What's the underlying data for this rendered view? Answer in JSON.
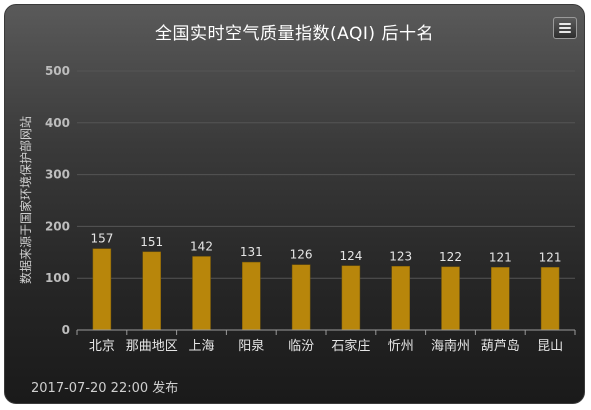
{
  "chart_data": {
    "type": "bar",
    "title": "全国实时空气质量指数(AQI) 后十名",
    "ylabel": "数据来源于国家环境保护部网站",
    "xlabel": "",
    "categories": [
      "北京",
      "那曲地区",
      "上海",
      "阳泉",
      "临汾",
      "石家庄",
      "忻州",
      "海南州",
      "葫芦岛",
      "昆山"
    ],
    "values": [
      157,
      151,
      142,
      131,
      126,
      124,
      123,
      122,
      121,
      121
    ],
    "ylim": [
      0,
      500
    ],
    "yticks": [
      "0",
      "100",
      "200",
      "300",
      "400",
      "500"
    ],
    "grid": true,
    "legend": "none",
    "bar_color": "#b8860b",
    "data_labels": [
      "157",
      "151",
      "142",
      "131",
      "126",
      "124",
      "123",
      "122",
      "121",
      "121"
    ]
  },
  "footer": {
    "published": "2017-07-20 22:00 发布"
  },
  "menu": {
    "icon": "hamburger-menu-icon"
  },
  "colors": {
    "background_top": "#5a5a5a",
    "background_bottom": "#1a1a1a",
    "bar": "#b8860b",
    "text": "#ffffff",
    "axis_text": "#cfcfcf"
  }
}
